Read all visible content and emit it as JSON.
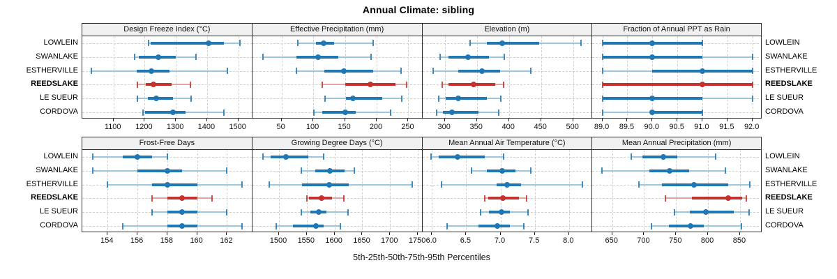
{
  "title": "Annual Climate: sibling",
  "xlabel": "5th-25th-50th-75th-95th Percentiles",
  "sites": [
    "LOWLEIN",
    "SWANLAKE",
    "ESTHERVILLE",
    "REEDSLAKE",
    "LE SUEUR",
    "CORDOVA"
  ],
  "highlight_site": "REEDSLAKE",
  "colors": {
    "series": "#1F77B4",
    "series_light": "#9DC6E0",
    "highlight": "#C5312D",
    "highlight_light": "#E3A69F",
    "strip_bg": "#F0F0F0",
    "panel_border": "#2E2E2E",
    "gridline": "#CFCFCF",
    "text": "#111111"
  },
  "chart_data": {
    "type": "scatter",
    "subtype": "percentile-dotplot-trellis",
    "layout": "2 rows x 4 columns",
    "legend_note": "line = 5th-95th, thick bar = 25th-75th, dot = 50th percentile",
    "percentiles": [
      5,
      25,
      50,
      75,
      95
    ],
    "grid": true,
    "rows_top_to_bottom": [
      "LOWLEIN",
      "SWANLAKE",
      "ESTHERVILLE",
      "REEDSLAKE",
      "LE SUEUR",
      "CORDOVA"
    ],
    "panels": [
      {
        "title": "Design Freeze Index (°C)",
        "grid_row": 1,
        "grid_col": 1,
        "xlim": [
          1000,
          1545
        ],
        "ticks": [
          1100,
          1200,
          1300,
          1400,
          1500
        ],
        "values": [
          [
            1212,
            1220,
            1405,
            1455,
            1505
          ],
          [
            1168,
            1180,
            1244,
            1300,
            1364
          ],
          [
            1030,
            1175,
            1222,
            1280,
            1465
          ],
          [
            1177,
            1204,
            1228,
            1286,
            1347
          ],
          [
            1176,
            1210,
            1238,
            1290,
            1348
          ],
          [
            1194,
            1202,
            1290,
            1332,
            1455
          ]
        ]
      },
      {
        "title": "Effective Precipitation (mm)",
        "grid_row": 1,
        "grid_col": 2,
        "xlim": [
          4,
          272
        ],
        "ticks": [
          50,
          100,
          150,
          200,
          250
        ],
        "values": [
          [
            76,
            104,
            116,
            133,
            195
          ],
          [
            21,
            73,
            108,
            140,
            191
          ],
          [
            73,
            117,
            148,
            195,
            238
          ],
          [
            114,
            150,
            190,
            230,
            247
          ],
          [
            119,
            152,
            163,
            209,
            240
          ],
          [
            101,
            114,
            151,
            167,
            222
          ]
        ]
      },
      {
        "title": "Elevation (m)",
        "grid_row": 1,
        "grid_col": 3,
        "xlim": [
          265,
          530
        ],
        "ticks": [
          300,
          350,
          400,
          450,
          500
        ],
        "values": [
          [
            339,
            366,
            390,
            447,
            512
          ],
          [
            293,
            306,
            336,
            369,
            393
          ],
          [
            282,
            321,
            358,
            386,
            434
          ],
          [
            296,
            306,
            345,
            379,
            392
          ],
          [
            291,
            301,
            321,
            366,
            387
          ],
          [
            287,
            297,
            311,
            352,
            384
          ]
        ]
      },
      {
        "title": "Fraction of Annual PPT as Rain",
        "grid_row": 1,
        "grid_col": 4,
        "xlim": [
          88.8,
          92.2
        ],
        "ticks": [
          89,
          89.5,
          90,
          90.5,
          91,
          91.5,
          92
        ],
        "tick_labels": [
          "89.0",
          "89.5",
          "90.0",
          "90.5",
          "91.0",
          "91.5",
          "92.0"
        ],
        "values": [
          [
            89,
            89,
            90,
            91,
            91
          ],
          [
            89,
            89,
            90,
            91,
            92
          ],
          [
            89,
            90,
            91,
            92,
            92
          ],
          [
            89,
            89,
            91,
            92,
            92
          ],
          [
            89,
            89,
            90,
            91,
            92
          ],
          [
            89,
            90,
            90,
            91,
            91
          ]
        ]
      },
      {
        "title": "Frost-Free Days",
        "grid_row": 2,
        "grid_col": 1,
        "xlim": [
          152.3,
          163.7
        ],
        "ticks": [
          154,
          156,
          158,
          160,
          162
        ],
        "values": [
          [
            153,
            155,
            156,
            157,
            158
          ],
          [
            153,
            156,
            158,
            159,
            162
          ],
          [
            154,
            157,
            158,
            160,
            163
          ],
          [
            157,
            158,
            159,
            160,
            161
          ],
          [
            157,
            158,
            159,
            160,
            162
          ],
          [
            155,
            158,
            159,
            160,
            163
          ]
        ]
      },
      {
        "title": "Growing Degree Days (°C)",
        "grid_row": 2,
        "grid_col": 2,
        "xlim": [
          1452,
          1758
        ],
        "ticks": [
          1500,
          1550,
          1600,
          1650,
          1700,
          1750
        ],
        "values": [
          [
            1471,
            1485,
            1512,
            1553,
            1580
          ],
          [
            1540,
            1565,
            1592,
            1618,
            1636
          ],
          [
            1482,
            1542,
            1590,
            1625,
            1740
          ],
          [
            1550,
            1554,
            1577,
            1595,
            1617
          ],
          [
            1540,
            1556,
            1571,
            1585,
            1624
          ],
          [
            1495,
            1525,
            1567,
            1580,
            1610
          ]
        ]
      },
      {
        "title": "Mean Annual Air Temperature (°C)",
        "grid_row": 2,
        "grid_col": 3,
        "xlim": [
          5.86,
          8.34
        ],
        "ticks": [
          6,
          6.5,
          7,
          7.5,
          8
        ],
        "tick_labels": [
          "6.0",
          "6.5",
          "7.0",
          "7.5",
          "8.0"
        ],
        "values": [
          [
            5.99,
            6.1,
            6.37,
            6.77,
            7.05
          ],
          [
            6.58,
            6.8,
            7.02,
            7.22,
            7.44
          ],
          [
            6.14,
            6.94,
            7.1,
            7.3,
            8.19
          ],
          [
            6.77,
            6.82,
            7.04,
            7.27,
            7.38
          ],
          [
            6.71,
            6.83,
            7.01,
            7.14,
            7.4
          ],
          [
            6.22,
            6.68,
            6.95,
            7.14,
            7.34
          ]
        ]
      },
      {
        "title": "Mean Annual Precipitation (mm)",
        "grid_row": 2,
        "grid_col": 4,
        "xlim": [
          619,
          885
        ],
        "ticks": [
          650,
          700,
          750,
          800,
          850
        ],
        "values": [
          [
            680,
            697,
            730,
            752,
            812
          ],
          [
            634,
            708,
            740,
            770,
            827
          ],
          [
            692,
            728,
            778,
            831,
            865
          ],
          [
            733,
            775,
            832,
            853,
            860
          ],
          [
            747,
            771,
            797,
            840,
            864
          ],
          [
            712,
            739,
            773,
            793,
            852
          ]
        ]
      }
    ]
  }
}
